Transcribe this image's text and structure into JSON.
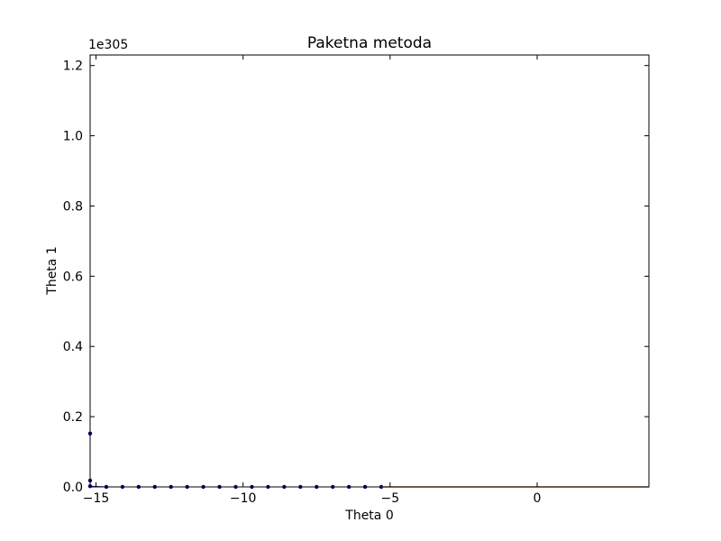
{
  "chart_data": {
    "type": "scatter",
    "title": "Paketna metoda",
    "xlabel": "Theta 0",
    "ylabel": "Theta 1",
    "y_offset_label": "1e305",
    "xlim": [
      -15.2,
      3.8
    ],
    "ylim": [
      0,
      1.23
    ],
    "x_ticks": [
      {
        "value": -15,
        "label": "−15"
      },
      {
        "value": -10,
        "label": "−10"
      },
      {
        "value": -5,
        "label": "−5"
      },
      {
        "value": 0,
        "label": "0"
      }
    ],
    "y_ticks": [
      {
        "value": 0.0,
        "label": "0.0"
      },
      {
        "value": 0.2,
        "label": "0.2"
      },
      {
        "value": 0.4,
        "label": "0.4"
      },
      {
        "value": 0.6,
        "label": "0.6"
      },
      {
        "value": 0.8,
        "label": "0.8"
      },
      {
        "value": 1.0,
        "label": "1.0"
      },
      {
        "value": 1.2,
        "label": "1.2"
      }
    ],
    "grid": false,
    "series": [
      {
        "color": "#00007f",
        "marker": "dot",
        "x": [
          -15.2,
          -15.2,
          -15.2,
          -14.65,
          -14.1,
          -13.55,
          -13.0,
          -12.45,
          -11.9,
          -11.35,
          -10.8,
          -10.25,
          -9.7,
          -9.15,
          -8.6,
          -8.05,
          -7.5,
          -6.95,
          -6.4,
          -5.85,
          -5.3
        ],
        "y": [
          0.152,
          0.018,
          0.002,
          0,
          0,
          0,
          0,
          0,
          0,
          0,
          0,
          0,
          0,
          0,
          0,
          0,
          0,
          0,
          0,
          0,
          0
        ]
      },
      {
        "color": "#b8743a",
        "marker": "line",
        "x": [
          -5.3,
          3.8
        ],
        "y": [
          0,
          0
        ]
      }
    ]
  }
}
